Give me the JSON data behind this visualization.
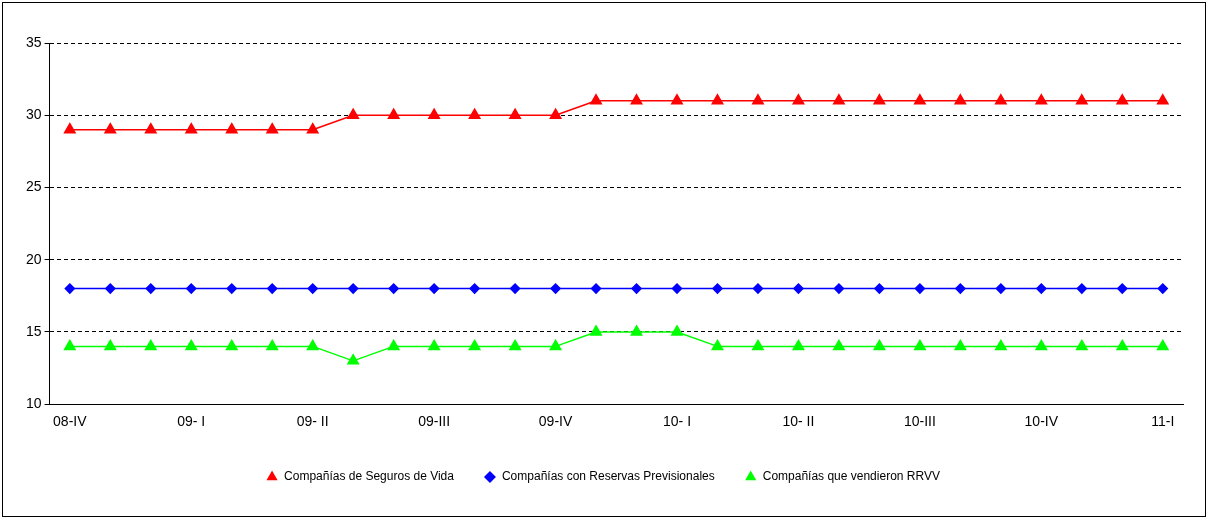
{
  "chart_data": {
    "type": "line",
    "categories": [
      "08-IV",
      null,
      null,
      "09- I",
      null,
      null,
      "09- II",
      null,
      null,
      "09-III",
      null,
      null,
      "09-IV",
      null,
      null,
      "10- I",
      null,
      null,
      "10- II",
      null,
      null,
      "10-III",
      null,
      null,
      "10-IV",
      null,
      null,
      "11-I"
    ],
    "series": [
      {
        "name": "Compañías de Seguros de Vida",
        "color": "#ff0000",
        "marker": "triangle",
        "values": [
          29,
          29,
          29,
          29,
          29,
          29,
          29,
          30,
          30,
          30,
          30,
          30,
          30,
          31,
          31,
          31,
          31,
          31,
          31,
          31,
          31,
          31,
          31,
          31,
          31,
          31,
          31,
          31
        ]
      },
      {
        "name": "Compañías con Reservas Previsionales",
        "color": "#0000ff",
        "marker": "diamond",
        "values": [
          18,
          18,
          18,
          18,
          18,
          18,
          18,
          18,
          18,
          18,
          18,
          18,
          18,
          18,
          18,
          18,
          18,
          18,
          18,
          18,
          18,
          18,
          18,
          18,
          18,
          18,
          18,
          18
        ]
      },
      {
        "name": "Compañías que vendieron RRVV",
        "color": "#00ff00",
        "marker": "triangle",
        "values": [
          14,
          14,
          14,
          14,
          14,
          14,
          14,
          13,
          14,
          14,
          14,
          14,
          14,
          15,
          15,
          15,
          14,
          14,
          14,
          14,
          14,
          14,
          14,
          14,
          14,
          14,
          14,
          14
        ]
      }
    ],
    "ylim": [
      10,
      35
    ],
    "yticks": [
      10,
      15,
      20,
      25,
      30,
      35
    ],
    "grid": "y",
    "line_style": "solid",
    "legend": "bottom"
  }
}
